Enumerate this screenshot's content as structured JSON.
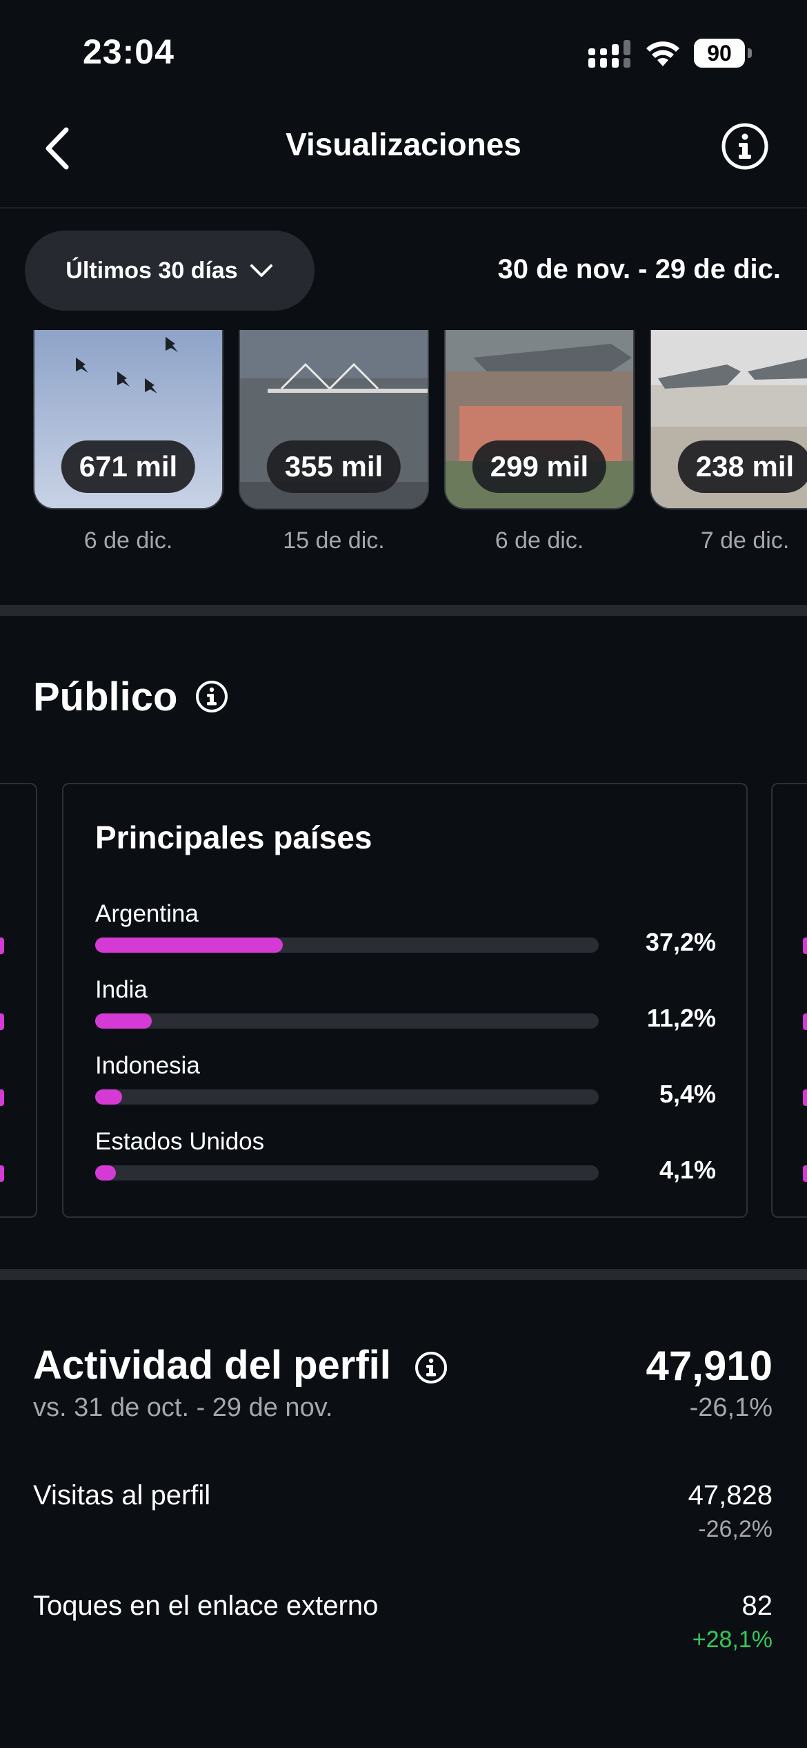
{
  "status_bar": {
    "time": "23:04",
    "battery": "90"
  },
  "nav": {
    "title": "Visualizaciones",
    "back_icon": "chevron-left-icon",
    "info_icon": "info-icon"
  },
  "filter": {
    "range_label": "Últimos 30 días",
    "date_range": "30 de nov. - 29 de dic."
  },
  "top_content": [
    {
      "views": "671 mil",
      "date": "6 de dic."
    },
    {
      "views": "355 mil",
      "date": "15 de dic."
    },
    {
      "views": "299 mil",
      "date": "6 de dic."
    },
    {
      "views": "238 mil",
      "date": "7 de dic."
    }
  ],
  "audience": {
    "title": "Público",
    "top_countries": {
      "title": "Principales países",
      "items": [
        {
          "name": "Argentina",
          "pct_label": "37,2%",
          "pct": 37.2
        },
        {
          "name": "India",
          "pct_label": "11,2%",
          "pct": 11.2
        },
        {
          "name": "Indonesia",
          "pct_label": "5,4%",
          "pct": 5.4
        },
        {
          "name": "Estados Unidos",
          "pct_label": "4,1%",
          "pct": 4.1
        }
      ]
    }
  },
  "profile_activity": {
    "title": "Actividad del perfil",
    "comparison": "vs. 31 de oct. - 29 de nov.",
    "total": "47,910",
    "total_change": "-26,1%",
    "metrics": [
      {
        "label": "Visitas al perfil",
        "value": "47,828",
        "change": "-26,2%"
      },
      {
        "label": "Toques en el enlace externo",
        "value": "82",
        "change": "+28,1%"
      }
    ]
  },
  "colors": {
    "background": "#0b0f14",
    "accent_bar": "#d63ad4",
    "positive": "#34c759",
    "muted_text": "#a3a8ae"
  }
}
